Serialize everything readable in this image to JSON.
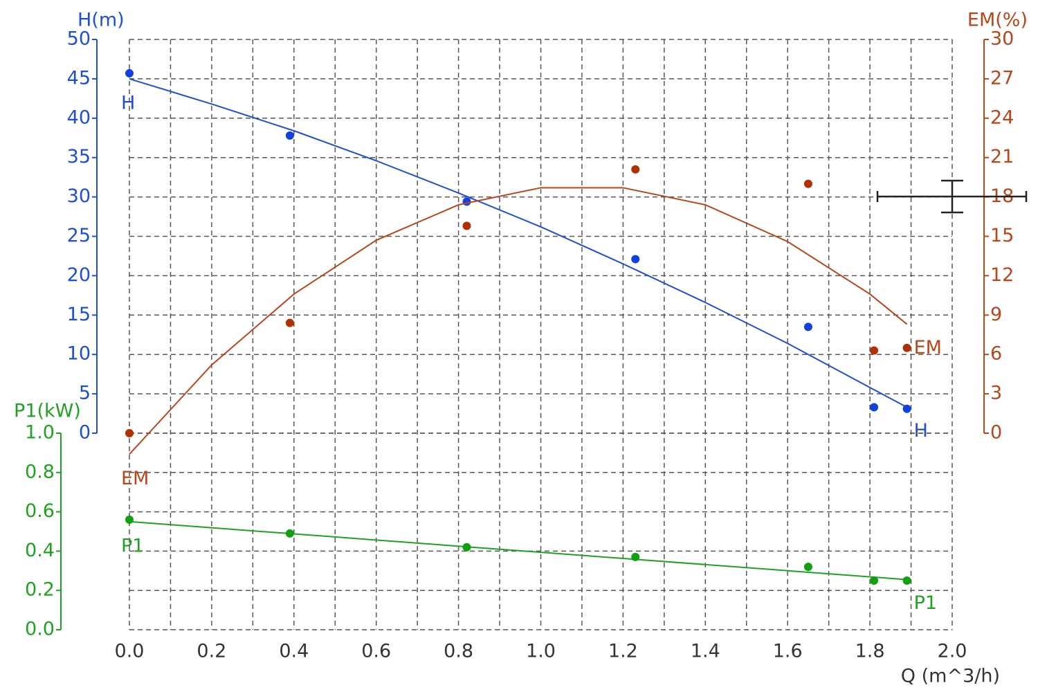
{
  "chart_data": {
    "type": "line",
    "xlabel": "Q (m^3/h)",
    "ylabel": "H(m)",
    "y2label": "EM(%)",
    "y3label": "P1(kW)",
    "xlim": [
      0,
      2
    ],
    "xticks": [
      {
        "value": 0,
        "label": "0.0"
      },
      0.2,
      0.4,
      0.6,
      0.8,
      {
        "value": 1,
        "label": "1.0"
      },
      1.2,
      1.4,
      1.6,
      1.8,
      {
        "value": 2,
        "label": "2.0"
      }
    ],
    "xminorticks": [
      0.1,
      0.3,
      0.5,
      0.7,
      0.9,
      1.1,
      1.3,
      1.5,
      1.7,
      1.9
    ],
    "ylim": [
      0,
      50
    ],
    "yticks": [
      0,
      5,
      10,
      15,
      20,
      25,
      30,
      35,
      40,
      45,
      50
    ],
    "y2lim": [
      0,
      30
    ],
    "y2ticks": [
      0,
      3,
      6,
      9,
      12,
      15,
      18,
      21,
      24,
      27,
      30
    ],
    "y3lim": [
      0,
      1
    ],
    "y3ticks": [
      {
        "value": 0,
        "label": "0.0"
      },
      0.2,
      0.4,
      0.6,
      0.8,
      {
        "value": 1,
        "label": "1.0"
      }
    ],
    "grid": true,
    "series": [
      {
        "name": "H",
        "color": "#1f4fcf",
        "point_color": "#1040e0",
        "axis": "y",
        "x": [
          0,
          0.39,
          0.82,
          1.23,
          1.65,
          1.81,
          1.89
        ],
        "values": [
          45.7,
          37.8,
          29.4,
          22.1,
          13.5,
          3.3,
          3.1
        ],
        "fit_x": [
          0,
          0.2,
          0.4,
          0.6,
          0.8,
          1.0,
          1.2,
          1.4,
          1.6,
          1.8,
          1.89
        ],
        "fit_values": [
          45,
          41.8,
          38.4,
          34.6,
          30.5,
          26.2,
          21.5,
          16.6,
          11.4,
          5.8,
          3.3
        ]
      },
      {
        "name": "EM",
        "color": "#b5471a",
        "point_color": "#b03000",
        "axis": "y2",
        "x": [
          0,
          0.39,
          0.82,
          1.23,
          1.65,
          1.81,
          1.89
        ],
        "values": [
          0,
          8.4,
          15.8,
          20.1,
          19.0,
          6.3,
          6.5
        ],
        "fit_x": [
          0,
          0.2,
          0.4,
          0.6,
          0.8,
          1.0,
          1.2,
          1.4,
          1.6,
          1.8,
          1.89
        ],
        "fit_values": [
          -1.6,
          5.2,
          10.6,
          14.7,
          17.4,
          18.7,
          18.7,
          17.4,
          14.6,
          10.6,
          8.3
        ]
      },
      {
        "name": "P1",
        "color": "#21a121",
        "point_color": "#10a010",
        "axis": "y3",
        "x": [
          0,
          0.39,
          0.82,
          1.23,
          1.65,
          1.81,
          1.89
        ],
        "values": [
          0.56,
          0.49,
          0.42,
          0.37,
          0.32,
          0.25,
          0.25
        ],
        "fit_x": [
          0,
          1.89
        ],
        "fit_values": [
          0.55,
          0.255
        ]
      }
    ]
  }
}
